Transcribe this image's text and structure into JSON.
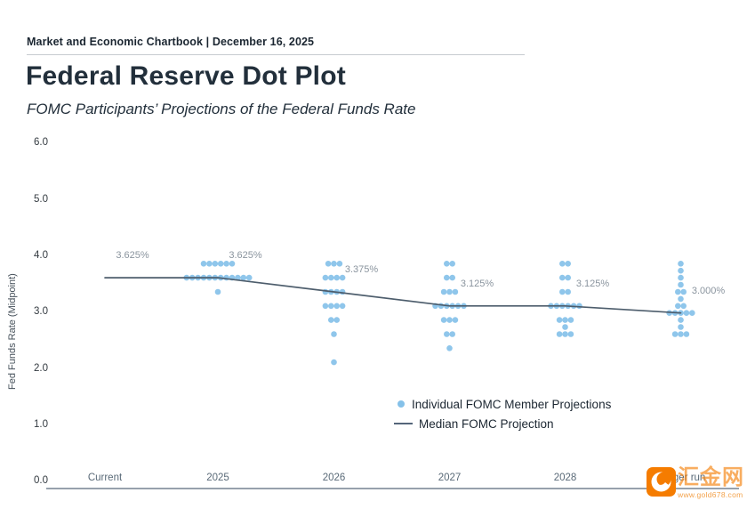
{
  "header": {
    "kicker": "Market and Economic Chartbook | December 16, 2025",
    "title": "Federal Reserve Dot Plot",
    "subtitle": "FOMC Participants’ Projections of the Federal Funds Rate"
  },
  "colors": {
    "dot": "#85c1e9",
    "median_line": "#4d5d6c",
    "axis_line": "#5d6d7e",
    "annotation": "#8a949e",
    "watermark_orange": "#f57c00"
  },
  "chart_data": {
    "type": "scatter",
    "title": "Federal Reserve Dot Plot",
    "subtitle": "FOMC Participants’ Projections of the Federal Funds Rate",
    "ylabel": "Fed Funds Rate (Midpoint)",
    "ylim": [
      0.0,
      6.0
    ],
    "yticks": [
      6.0,
      5.0,
      4.0,
      3.0,
      2.0,
      1.0,
      0.0
    ],
    "ytick_labels": [
      "6.0",
      "5.0",
      "4.0",
      "3.0",
      "2.0",
      "1.0",
      "0.0"
    ],
    "categories": [
      "Current",
      "2025",
      "2026",
      "2027",
      "2028",
      "Longer run"
    ],
    "medians": [
      3.625,
      3.625,
      3.375,
      3.125,
      3.125,
      3.0
    ],
    "median_labels": [
      "3.625%",
      "3.625%",
      "3.375%",
      "3.125%",
      "3.125%",
      "3.000%"
    ],
    "columns": [
      {
        "label": "Current",
        "dots": []
      },
      {
        "label": "2025",
        "dots": [
          [
            3.875,
            6
          ],
          [
            3.625,
            12
          ],
          [
            3.375,
            1
          ]
        ]
      },
      {
        "label": "2026",
        "dots": [
          [
            3.875,
            3
          ],
          [
            3.625,
            4
          ],
          [
            3.375,
            4
          ],
          [
            3.125,
            4
          ],
          [
            2.875,
            2
          ],
          [
            2.625,
            1
          ],
          [
            2.125,
            1
          ]
        ]
      },
      {
        "label": "2027",
        "dots": [
          [
            3.875,
            2
          ],
          [
            3.625,
            2
          ],
          [
            3.375,
            3
          ],
          [
            3.125,
            6
          ],
          [
            2.875,
            3
          ],
          [
            2.625,
            2
          ],
          [
            2.375,
            1
          ]
        ]
      },
      {
        "label": "2028",
        "dots": [
          [
            3.875,
            2
          ],
          [
            3.625,
            2
          ],
          [
            3.375,
            2
          ],
          [
            3.125,
            6
          ],
          [
            2.875,
            3
          ],
          [
            2.75,
            1
          ],
          [
            2.625,
            3
          ]
        ]
      },
      {
        "label": "Longer run",
        "dots": [
          [
            3.875,
            1
          ],
          [
            3.75,
            1
          ],
          [
            3.625,
            1
          ],
          [
            3.5,
            1
          ],
          [
            3.375,
            2
          ],
          [
            3.25,
            1
          ],
          [
            3.125,
            2
          ],
          [
            3.0,
            5
          ],
          [
            2.875,
            1
          ],
          [
            2.75,
            1
          ],
          [
            2.625,
            3
          ]
        ]
      }
    ],
    "legend": [
      {
        "marker": "dot",
        "label": "Individual FOMC Member Projections"
      },
      {
        "marker": "line",
        "label": "Median FOMC Projection"
      }
    ],
    "legend_position": "lower center",
    "grid": false
  },
  "watermark": {
    "brand": "汇金网",
    "url": "www.gold678.com"
  }
}
